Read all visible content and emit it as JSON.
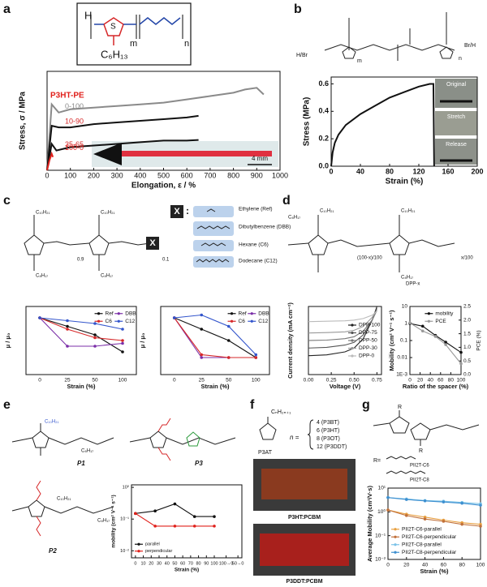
{
  "panel_labels": [
    "a",
    "b",
    "c",
    "d",
    "e",
    "f",
    "g"
  ],
  "structures": {
    "a": {
      "h": "H",
      "s": "S",
      "m": "m",
      "n": "n",
      "side": "C₆H₁₃"
    },
    "b": {
      "end_left": "H/Br",
      "end_right": "Br/H",
      "m": "m",
      "n": "n",
      "s": "S"
    },
    "c": {
      "x": "X",
      "colon": ":",
      "side": "C₁₀H₂₁",
      "side2": "C₈H₁₇",
      "n1": "0.9",
      "n2": "0.1",
      "spacers": [
        "Ethylene (Ref)",
        "Dibutylbenzene (DBB)",
        "Hexane (C6)",
        "Dodecane (C12)"
      ]
    },
    "d": {
      "side": "C₁₀H₂₁",
      "side2": "C₈H₁₇",
      "ratio": "(100-x)/100",
      "x": "x/100",
      "name": "DPP-x"
    },
    "e": {
      "p1": "P1",
      "p2": "P2",
      "p3": "P3",
      "side": "C₁₀H₂₁",
      "side2": "C₈H₁₇"
    },
    "f": {
      "name": "P3AT",
      "side": "CₙH₂ₙ₊₁",
      "n": "n =",
      "members": [
        "4 (P3BT)",
        "6 (P3HT)",
        "8 (P3OT)",
        "12 (P3DDT)"
      ],
      "photo1": "P3HT:PCBM",
      "photo2": "P3DDT:PCBM"
    },
    "g": {
      "r": "R",
      "req": "R=",
      "c6": "PII2T-C6",
      "c8": "PII2T-C8"
    }
  },
  "chart_data": [
    {
      "type": "line",
      "x_label": "Elongation, ε / %",
      "y_label": "Stress, σ / MPa",
      "xlim": [
        0,
        1000
      ],
      "xticks": [
        0,
        100,
        200,
        300,
        400,
        500,
        600,
        700,
        800,
        900,
        1000
      ],
      "ylim": [
        0,
        30
      ],
      "legend": "inline",
      "legend_title": "P3HT-PE",
      "annotations": [
        "4 mm"
      ],
      "series": [
        {
          "name": "0-100",
          "color": "#8a8a8a",
          "x": [
            0,
            20,
            50,
            100,
            200,
            300,
            400,
            500,
            600,
            700,
            800,
            850,
            900,
            930
          ],
          "values": [
            0,
            20,
            17.5,
            18.5,
            19,
            19.5,
            20,
            20.5,
            21.5,
            22.5,
            23.5,
            24.5,
            25,
            23
          ]
        },
        {
          "name": "10-90",
          "color": "#111111",
          "x": [
            0,
            20,
            50,
            100,
            200,
            300,
            400,
            500,
            600,
            650
          ],
          "values": [
            0,
            13.5,
            13,
            13,
            14,
            14.5,
            15,
            15.5,
            16,
            16.5
          ]
        },
        {
          "name": "35-65",
          "color": "#111111",
          "x": [
            0,
            20,
            40,
            100,
            200,
            300,
            400,
            500,
            600,
            650
          ],
          "values": [
            0,
            8,
            6,
            7,
            7.5,
            8,
            8.5,
            9,
            9,
            9.2
          ]
        },
        {
          "name": "100-0",
          "color": "#e0201b",
          "x": [
            0,
            10,
            20,
            25
          ],
          "values": [
            0,
            3,
            5,
            4
          ]
        }
      ]
    },
    {
      "type": "line",
      "x_label": "Strain (%)",
      "y_label": "Stress (MPa)",
      "xlim": [
        0,
        200
      ],
      "xticks": [
        0,
        40,
        80,
        120,
        160,
        200
      ],
      "ylim": [
        0,
        0.65
      ],
      "yticks": [
        {
          "value": 0,
          "label": "0.0"
        },
        0.2,
        0.4,
        0.6
      ],
      "annotations": [
        "Original",
        "Stretch",
        "Release"
      ],
      "series": [
        {
          "name": "Stress",
          "color": "#111111",
          "x": [
            0,
            2,
            5,
            10,
            20,
            40,
            60,
            80,
            100,
            120,
            135,
            140,
            141
          ],
          "values": [
            0,
            0.1,
            0.17,
            0.23,
            0.3,
            0.38,
            0.44,
            0.5,
            0.54,
            0.58,
            0.6,
            0.6,
            0
          ]
        }
      ]
    },
    {
      "type": "line",
      "x_label": "Strain (%)",
      "y_label": "μ / μ₀",
      "categories": [
        "0",
        "25",
        "50",
        "100"
      ],
      "ylim": [
        0,
        1.2
      ],
      "legend": "upper right",
      "legend_columns": 2,
      "markers": true,
      "series": [
        {
          "name": "Ref",
          "color": "#111111",
          "values": [
            1,
            0.85,
            0.7,
            0.4
          ]
        },
        {
          "name": "DBB",
          "color": "#7b2fa8",
          "values": [
            1,
            0.5,
            0.5,
            0.55
          ]
        },
        {
          "name": "C6",
          "color": "#d62728",
          "values": [
            1,
            0.8,
            0.65,
            0.6
          ]
        },
        {
          "name": "C12",
          "color": "#3355cc",
          "values": [
            1,
            0.95,
            0.9,
            0.8
          ]
        }
      ]
    },
    {
      "type": "line",
      "x_label": "Strain (%)",
      "y_label": "μ / μ₀",
      "categories": [
        "0",
        "25",
        "50",
        "100"
      ],
      "ylim": [
        0,
        1.2
      ],
      "legend": "upper right",
      "legend_columns": 2,
      "markers": true,
      "series": [
        {
          "name": "Ref",
          "color": "#111111",
          "values": [
            1,
            0.8,
            0.6,
            0.3
          ]
        },
        {
          "name": "DBB",
          "color": "#7b2fa8",
          "values": [
            1,
            0.3,
            0.3,
            0.3
          ]
        },
        {
          "name": "C6",
          "color": "#d62728",
          "values": [
            1,
            0.35,
            0.3,
            0.3
          ]
        },
        {
          "name": "C12",
          "color": "#3355cc",
          "values": [
            1,
            1.05,
            0.85,
            0.35
          ]
        }
      ]
    },
    {
      "type": "line",
      "x_label": "Voltage (V)",
      "y_label": "Current density (mA cm⁻²)",
      "xlim": [
        0,
        0.8
      ],
      "xticks": [
        {
          "value": 0,
          "label": "0.00"
        },
        0.25,
        {
          "value": 0.5,
          "label": "0.50"
        },
        0.75
      ],
      "ylim": [
        -16,
        2
      ],
      "legend": "center right",
      "x": [
        0,
        0.2,
        0.4,
        0.5,
        0.6,
        0.7,
        0.75
      ],
      "series": [
        {
          "name": "DPP-100",
          "color": "#222222",
          "values": [
            -11,
            -10.8,
            -10,
            -9,
            -6.5,
            -1.5,
            2
          ]
        },
        {
          "name": "DPP-75",
          "color": "#555555",
          "values": [
            -9,
            -8.8,
            -8.2,
            -7.5,
            -5.5,
            -1.5,
            1.5
          ]
        },
        {
          "name": "DPP-50",
          "color": "#777777",
          "values": [
            -7,
            -6.9,
            -6.5,
            -6,
            -4.5,
            -1.5,
            1
          ]
        },
        {
          "name": "DPP-30",
          "color": "#999999",
          "values": [
            -5,
            -4.9,
            -4.7,
            -4.3,
            -3.3,
            -0.8,
            1
          ]
        },
        {
          "name": "DPP-0",
          "color": "#bbbbbb",
          "values": [
            -2,
            -1.9,
            -1.8,
            -1.6,
            -1.2,
            -0.3,
            0.8
          ]
        }
      ]
    },
    {
      "type": "line",
      "x_label": "Ratio of the spacer (%)",
      "y_label": "Mobility (cm² V⁻¹ s⁻¹)",
      "y2_label": "PCE (%)",
      "xlim": [
        0,
        100
      ],
      "xticks": [
        0,
        20,
        40,
        60,
        80,
        100
      ],
      "ylog": true,
      "ylim": [
        0.001,
        10
      ],
      "yticks": [
        {
          "value": 0.001,
          "label": "1E-3"
        },
        0.01,
        0.1,
        1,
        10
      ],
      "y2lim": [
        0,
        2.5
      ],
      "y2ticks": [
        {
          "value": 0,
          "label": "0.0"
        },
        0.5,
        {
          "value": 1,
          "label": "1.0"
        },
        1.5,
        {
          "value": 2,
          "label": "2.0"
        },
        2.5
      ],
      "legend": "upper right",
      "markers": true,
      "series": [
        {
          "name": "mobility",
          "color": "#111111",
          "x": [
            0,
            25,
            50,
            70,
            100
          ],
          "values": [
            1,
            0.7,
            0.2,
            0.08,
            0.02
          ]
        },
        {
          "name": "PCE",
          "color": "#999999",
          "axis": "y2",
          "x": [
            0,
            25,
            50,
            70,
            100
          ],
          "values": [
            1.9,
            1.6,
            1.4,
            1.1,
            0.4
          ]
        }
      ]
    },
    {
      "type": "line",
      "x_label": "Strain (%)",
      "y_label": "mobility (cm² V⁻¹ s⁻¹)",
      "xlim": [
        -5,
        135
      ],
      "xticks": [
        0,
        10,
        20,
        30,
        40,
        50,
        60,
        70,
        80,
        90,
        100,
        {
          "value": 115,
          "label": "100→0"
        },
        {
          "value": 130,
          "label": "50→0"
        }
      ],
      "ylog": true,
      "ylim": [
        0.006,
        1.2
      ],
      "yticks": [
        {
          "value": 0.01,
          "label": "10⁻²"
        },
        {
          "value": 0.1,
          "label": "10⁻¹"
        },
        {
          "value": 1,
          "label": "10⁰"
        }
      ],
      "legend": "lower left",
      "markers": true,
      "series": [
        {
          "name": "parallel",
          "color": "#111111",
          "x": [
            0,
            25,
            50,
            75,
            100
          ],
          "values": [
            0.15,
            0.18,
            0.3,
            0.12,
            0.12
          ]
        },
        {
          "name": "perpendicular",
          "color": "#e0201b",
          "x": [
            0,
            25,
            50,
            75,
            100
          ],
          "values": [
            0.15,
            0.06,
            0.06,
            0.06,
            0.06
          ]
        }
      ]
    },
    {
      "type": "line",
      "x_label": "Strain (%)",
      "y_label": "Average Mobility (cm²/V·s)",
      "xlim": [
        0,
        100
      ],
      "xticks": [
        0,
        20,
        40,
        60,
        80,
        100
      ],
      "ylog": true,
      "ylim": [
        0.01,
        10
      ],
      "yticks": [
        {
          "value": 0.01,
          "label": "10⁻²"
        },
        {
          "value": 0.1,
          "label": "10⁻¹"
        },
        {
          "value": 1,
          "label": "10⁰"
        },
        {
          "value": 10,
          "label": "10¹"
        }
      ],
      "legend": "lower left",
      "markers": true,
      "series": [
        {
          "name": "PII2T-C6-parallel",
          "color": "#e8a040",
          "x": [
            0,
            20,
            40,
            60,
            80,
            100
          ],
          "values": [
            1.2,
            0.8,
            0.6,
            0.45,
            0.35,
            0.3
          ]
        },
        {
          "name": "PII2T-C6-perpendicular",
          "color": "#c0703a",
          "x": [
            0,
            20,
            40,
            60,
            80,
            100
          ],
          "values": [
            1.2,
            0.7,
            0.5,
            0.4,
            0.3,
            0.25
          ]
        },
        {
          "name": "PII2T-C8-parallel",
          "color": "#7cc3e8",
          "x": [
            0,
            20,
            40,
            60,
            80,
            100
          ],
          "values": [
            4,
            3.5,
            3,
            2.8,
            2.5,
            2.2
          ]
        },
        {
          "name": "PII2T-C8-perpendicular",
          "color": "#3d8fd0",
          "x": [
            0,
            20,
            40,
            60,
            80,
            100
          ],
          "values": [
            4,
            3.3,
            2.9,
            2.6,
            2.3,
            1.9
          ]
        }
      ]
    }
  ]
}
